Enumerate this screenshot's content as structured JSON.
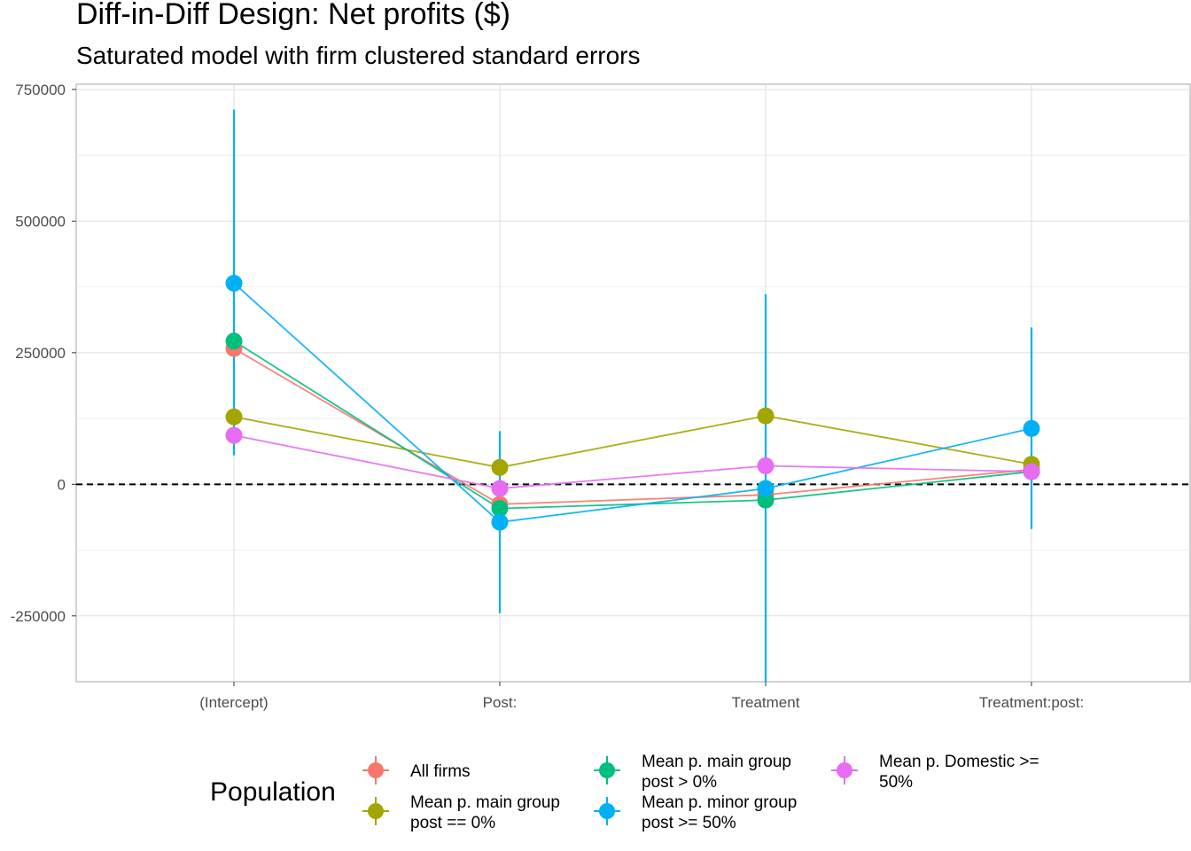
{
  "chart_data": {
    "type": "scatter",
    "title": "Diff-in-Diff Design: Net profits  ($)",
    "subtitle": "Saturated model with firm clustered standard errors",
    "xlabel": "",
    "ylabel": "",
    "categories": [
      "(Intercept)",
      "Post:",
      "Treatment",
      "Treatment:post:"
    ],
    "ylim": [
      -375000,
      760000
    ],
    "y_ticks": [
      -250000,
      0,
      250000,
      500000,
      750000
    ],
    "y_tick_labels": [
      "-250000",
      "0",
      "250000",
      "500000",
      "750000"
    ],
    "grid": true,
    "reference_line": {
      "y": 0,
      "style": "dashed"
    },
    "legend": {
      "title": "Population",
      "placement": "bottom",
      "entries": [
        "All firms",
        "Mean p. main group\npost == 0%",
        "Mean p. main group\npost > 0%",
        "Mean p. minor group\npost >= 50%",
        "Mean p. Domestic >=\n50%"
      ]
    },
    "series": [
      {
        "name": "All firms",
        "color": "#F8766D",
        "values": [
          258000,
          -38000,
          -20000,
          28000
        ]
      },
      {
        "name": "Mean p. main group\npost == 0%",
        "color": "#A3A500",
        "values": [
          128000,
          32000,
          130000,
          38000
        ]
      },
      {
        "name": "Mean p. main group\npost > 0%",
        "color": "#00BF7D",
        "values": [
          272000,
          -46000,
          -30000,
          24000
        ]
      },
      {
        "name": "Mean p. minor group\npost >= 50%",
        "color": "#00B0F6",
        "values": [
          382000,
          -72000,
          -8000,
          106000
        ],
        "ci_low": [
          55000,
          -245000,
          -375000,
          -85000
        ],
        "ci_high": [
          712000,
          101000,
          361000,
          298000
        ]
      },
      {
        "name": "Mean p. Domestic >=\n50%",
        "color": "#E76BF3",
        "values": [
          93000,
          -8000,
          35000,
          24000
        ]
      }
    ]
  }
}
